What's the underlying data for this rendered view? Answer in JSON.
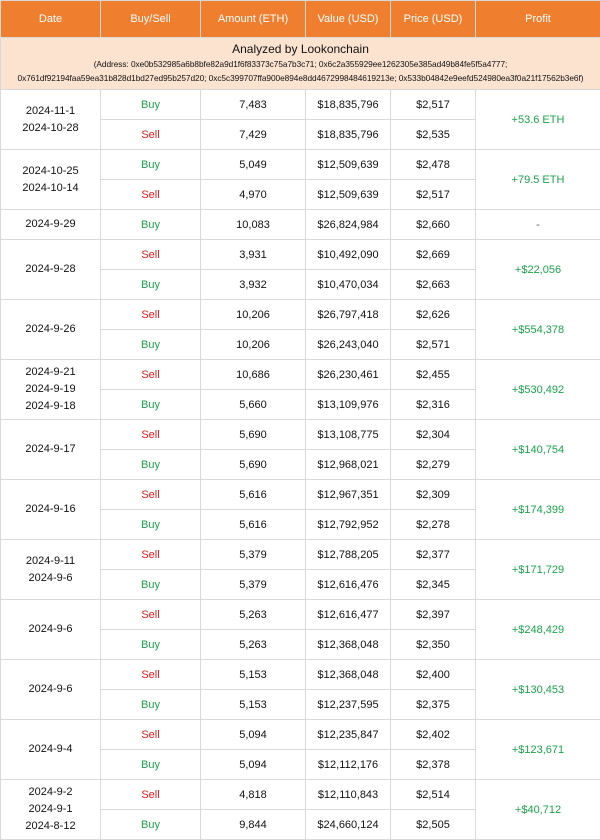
{
  "headers": [
    "Date",
    "Buy/Sell",
    "Amount (ETH)",
    "Value (USD)",
    "Price (USD)",
    "Profit"
  ],
  "analyzed": {
    "title": "Analyzed by Lookonchain",
    "address_line1": "(Address: 0xe0b532985a6b8bfe82a9d1f6f83373c75a7b3c71; 0x6c2a355929ee1262305e385ad49b84fe5f5a4777;",
    "address_line2": "0x761df92194faa59ea31b828d1bd27ed95b257d20; 0xc5c399707ffa900e894e8dd4672998484619213e; 0x533b04842e9eefd524980ea3f0a21f17562b3e6f)"
  },
  "groups": [
    {
      "dates": [
        "2024-11-1",
        "2024-10-28"
      ],
      "profit": "+53.6 ETH",
      "rows": [
        {
          "side": "Buy",
          "amount": "7,483",
          "value": "$18,835,796",
          "price": "$2,517"
        },
        {
          "side": "Sell",
          "amount": "7,429",
          "value": "$18,835,796",
          "price": "$2,535"
        }
      ]
    },
    {
      "dates": [
        "2024-10-25",
        "2024-10-14"
      ],
      "profit": "+79.5 ETH",
      "rows": [
        {
          "side": "Buy",
          "amount": "5,049",
          "value": "$12,509,639",
          "price": "$2,478"
        },
        {
          "side": "Sell",
          "amount": "4,970",
          "value": "$12,509,639",
          "price": "$2,517"
        }
      ]
    },
    {
      "dates": [
        "2024-9-29"
      ],
      "profit": "-",
      "rows": [
        {
          "side": "Buy",
          "amount": "10,083",
          "value": "$26,824,984",
          "price": "$2,660"
        }
      ]
    },
    {
      "dates": [
        "2024-9-28"
      ],
      "profit": "+$22,056",
      "rows": [
        {
          "side": "Sell",
          "amount": "3,931",
          "value": "$10,492,090",
          "price": "$2,669"
        },
        {
          "side": "Buy",
          "amount": "3,932",
          "value": "$10,470,034",
          "price": "$2,663"
        }
      ]
    },
    {
      "dates": [
        "2024-9-26"
      ],
      "profit": "+$554,378",
      "rows": [
        {
          "side": "Sell",
          "amount": "10,206",
          "value": "$26,797,418",
          "price": "$2,626"
        },
        {
          "side": "Buy",
          "amount": "10,206",
          "value": "$26,243,040",
          "price": "$2,571"
        }
      ]
    },
    {
      "dates": [
        "2024-9-21",
        "2024-9-19",
        "2024-9-18"
      ],
      "profit": "+$530,492",
      "rows": [
        {
          "side": "Sell",
          "amount": "10,686",
          "value": "$26,230,461",
          "price": "$2,455"
        },
        {
          "side": "Buy",
          "amount": "5,660",
          "value": "$13,109,976",
          "price": "$2,316"
        }
      ]
    },
    {
      "dates": [
        "2024-9-17"
      ],
      "profit": "+$140,754",
      "rows": [
        {
          "side": "Sell",
          "amount": "5,690",
          "value": "$13,108,775",
          "price": "$2,304"
        },
        {
          "side": "Buy",
          "amount": "5,690",
          "value": "$12,968,021",
          "price": "$2,279"
        }
      ]
    },
    {
      "dates": [
        "2024-9-16"
      ],
      "profit": "+$174,399",
      "rows": [
        {
          "side": "Sell",
          "amount": "5,616",
          "value": "$12,967,351",
          "price": "$2,309"
        },
        {
          "side": "Buy",
          "amount": "5,616",
          "value": "$12,792,952",
          "price": "$2,278"
        }
      ]
    },
    {
      "dates": [
        "2024-9-11",
        "2024-9-6"
      ],
      "profit": "+$171,729",
      "rows": [
        {
          "side": "Sell",
          "amount": "5,379",
          "value": "$12,788,205",
          "price": "$2,377"
        },
        {
          "side": "Buy",
          "amount": "5,379",
          "value": "$12,616,476",
          "price": "$2,345"
        }
      ]
    },
    {
      "dates": [
        "2024-9-6"
      ],
      "profit": "+$248,429",
      "rows": [
        {
          "side": "Sell",
          "amount": "5,263",
          "value": "$12,616,477",
          "price": "$2,397"
        },
        {
          "side": "Buy",
          "amount": "5,263",
          "value": "$12,368,048",
          "price": "$2,350"
        }
      ]
    },
    {
      "dates": [
        "2024-9-6"
      ],
      "profit": "+$130,453",
      "rows": [
        {
          "side": "Sell",
          "amount": "5,153",
          "value": "$12,368,048",
          "price": "$2,400"
        },
        {
          "side": "Buy",
          "amount": "5,153",
          "value": "$12,237,595",
          "price": "$2,375"
        }
      ]
    },
    {
      "dates": [
        "2024-9-4"
      ],
      "profit": "+$123,671",
      "rows": [
        {
          "side": "Sell",
          "amount": "5,094",
          "value": "$12,235,847",
          "price": "$2,402"
        },
        {
          "side": "Buy",
          "amount": "5,094",
          "value": "$12,112,176",
          "price": "$2,378"
        }
      ]
    },
    {
      "dates": [
        "2024-9-2",
        "2024-9-1",
        "2024-8-12"
      ],
      "profit": "+$40,712",
      "rows": [
        {
          "side": "Sell",
          "amount": "4,818",
          "value": "$12,110,843",
          "price": "$2,514"
        },
        {
          "side": "Buy",
          "amount": "9,844",
          "value": "$24,660,124",
          "price": "$2,505"
        }
      ]
    }
  ]
}
